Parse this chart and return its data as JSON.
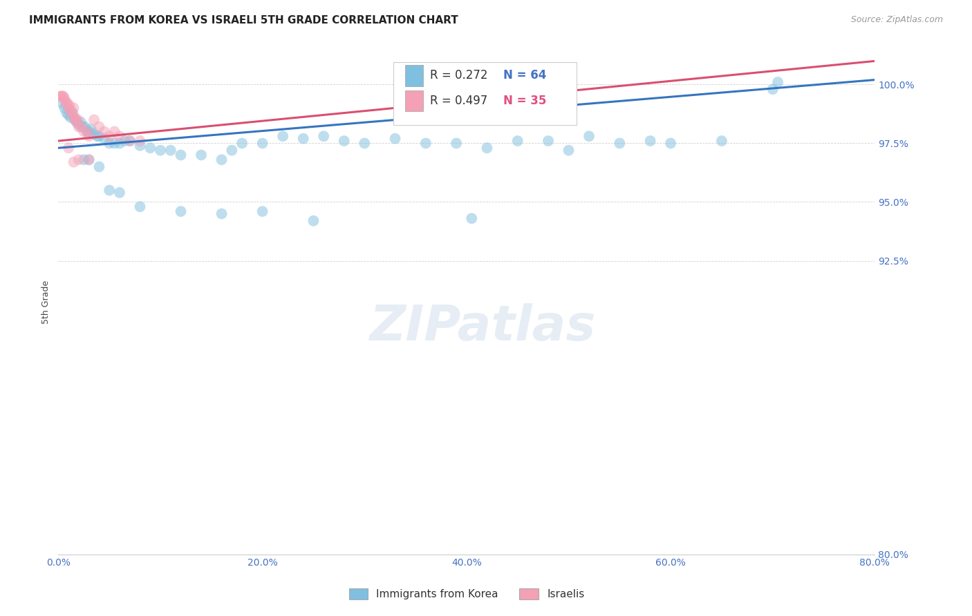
{
  "title": "IMMIGRANTS FROM KOREA VS ISRAELI 5TH GRADE CORRELATION CHART",
  "source": "Source: ZipAtlas.com",
  "ylabel": "5th Grade",
  "x_tick_labels": [
    "0.0%",
    "",
    "20.0%",
    "",
    "40.0%",
    "",
    "60.0%",
    "",
    "80.0%"
  ],
  "x_tick_values": [
    0.0,
    10.0,
    20.0,
    30.0,
    40.0,
    50.0,
    60.0,
    70.0,
    80.0
  ],
  "y_tick_labels": [
    "100.0%",
    "97.5%",
    "95.0%",
    "92.5%",
    "80.0%"
  ],
  "y_tick_values": [
    100.0,
    97.5,
    95.0,
    92.5,
    80.0
  ],
  "xlim": [
    0.0,
    80.0
  ],
  "ylim": [
    80.0,
    101.5
  ],
  "blue_color": "#7fbfdf",
  "pink_color": "#f4a0b5",
  "blue_line_color": "#3575c0",
  "pink_line_color": "#d94f70",
  "background_color": "#ffffff",
  "blue_scatter_x": [
    0.4,
    0.6,
    0.8,
    1.0,
    1.2,
    1.4,
    1.6,
    1.8,
    2.0,
    2.2,
    2.4,
    2.6,
    2.8,
    3.0,
    3.2,
    3.5,
    3.8,
    4.0,
    4.5,
    5.0,
    5.5,
    6.0,
    6.5,
    7.0,
    8.0,
    9.0,
    10.0,
    11.0,
    12.0,
    14.0,
    16.0,
    17.0,
    18.0,
    20.0,
    22.0,
    24.0,
    26.0,
    28.0,
    30.0,
    33.0,
    36.0,
    39.0,
    42.0,
    45.0,
    48.0,
    50.0,
    52.0,
    55.0,
    58.0,
    60.0,
    65.0,
    70.0,
    2.5,
    3.0,
    4.0,
    5.0,
    6.0,
    8.0,
    12.0,
    16.0,
    20.0,
    25.0,
    40.5,
    70.5
  ],
  "blue_scatter_y": [
    99.2,
    99.0,
    98.8,
    98.7,
    98.6,
    98.8,
    98.5,
    98.4,
    98.3,
    98.4,
    98.2,
    98.2,
    98.0,
    98.0,
    98.1,
    97.9,
    97.8,
    97.8,
    97.7,
    97.5,
    97.5,
    97.5,
    97.6,
    97.6,
    97.4,
    97.3,
    97.2,
    97.2,
    97.0,
    97.0,
    96.8,
    97.2,
    97.5,
    97.5,
    97.8,
    97.7,
    97.8,
    97.6,
    97.5,
    97.7,
    97.5,
    97.5,
    97.3,
    97.6,
    97.6,
    97.2,
    97.8,
    97.5,
    97.6,
    97.5,
    97.6,
    99.8,
    96.8,
    96.8,
    96.5,
    95.5,
    95.4,
    94.8,
    94.6,
    94.5,
    94.6,
    94.2,
    94.3,
    100.1
  ],
  "pink_scatter_x": [
    0.2,
    0.3,
    0.4,
    0.5,
    0.6,
    0.7,
    0.8,
    0.9,
    1.0,
    1.1,
    1.2,
    1.3,
    1.4,
    1.5,
    1.6,
    1.7,
    1.8,
    1.9,
    2.0,
    2.2,
    2.5,
    2.8,
    3.0,
    3.5,
    4.0,
    4.5,
    5.0,
    5.5,
    6.0,
    7.0,
    8.0,
    1.0,
    2.0,
    3.0,
    1.5
  ],
  "pink_scatter_y": [
    99.5,
    99.5,
    99.5,
    99.5,
    99.4,
    99.3,
    99.2,
    99.2,
    99.0,
    99.1,
    98.9,
    98.8,
    98.7,
    99.0,
    98.6,
    98.5,
    98.4,
    98.5,
    98.2,
    98.2,
    98.0,
    98.0,
    97.8,
    98.5,
    98.2,
    98.0,
    97.8,
    98.0,
    97.8,
    97.6,
    97.6,
    97.3,
    96.8,
    96.8,
    96.7
  ],
  "blue_line_x0": 0.0,
  "blue_line_y0": 97.3,
  "blue_line_x1": 80.0,
  "blue_line_y1": 100.2,
  "pink_line_x0": 0.0,
  "pink_line_y0": 97.6,
  "pink_line_x1": 80.0,
  "pink_line_y1": 101.0,
  "title_fontsize": 11,
  "axis_label_fontsize": 9,
  "tick_fontsize": 10,
  "source_fontsize": 9,
  "stats_R_blue": "R = 0.272",
  "stats_N_blue": "N = 64",
  "stats_R_pink": "R = 0.497",
  "stats_N_pink": "N = 35"
}
